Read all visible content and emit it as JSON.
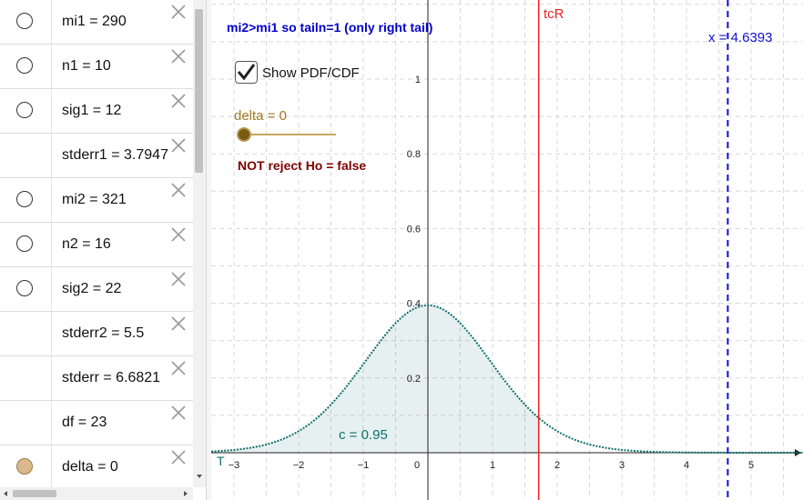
{
  "algebra": {
    "items": [
      {
        "label": "mi1 = 290",
        "bullet": "empty"
      },
      {
        "label": "n1 = 10",
        "bullet": "empty"
      },
      {
        "label": "sig1 = 12",
        "bullet": "empty"
      },
      {
        "label": "stderr1 = 3.7947",
        "bullet": "none"
      },
      {
        "label": "mi2 = 321",
        "bullet": "empty"
      },
      {
        "label": "n2 = 16",
        "bullet": "empty"
      },
      {
        "label": "sig2 = 22",
        "bullet": "empty"
      },
      {
        "label": "stderr2 = 5.5",
        "bullet": "none"
      },
      {
        "label": "stderr = 6.6821",
        "bullet": "none"
      },
      {
        "label": "df = 23",
        "bullet": "none"
      },
      {
        "label": "delta = 0",
        "bullet": "filled"
      }
    ],
    "delete_icon": "close-icon"
  },
  "graphics": {
    "tail_text": "mi2>mi1 so tailn=1 (only right tail)",
    "show_checkbox": {
      "label": "Show PDF/CDF",
      "checked": true
    },
    "slider": {
      "label": "delta = 0",
      "value": 0
    },
    "reject_text": "NOT reject Ho = false",
    "tcR_label": "tcR",
    "x_line_label": "x = 4.6393",
    "c_label": "c = 0.95",
    "T_label": "T",
    "colors": {
      "tail_text": "#0000cc",
      "reject_text": "#800000",
      "tcR": "#ee2222",
      "x_line": "#1111cc",
      "curve": "#117070",
      "slider": "#a07820"
    }
  },
  "chart_data": {
    "type": "area",
    "curve": "t-distribution pdf (df = 23), shaded from left to tcR",
    "x_ticks": [
      "−3",
      "−2",
      "−1",
      "0",
      "1",
      "2",
      "3",
      "4",
      "5"
    ],
    "y_ticks": [
      "0.2",
      "0.4",
      "0.6",
      "0.8",
      "1"
    ],
    "xlim": [
      -3.35,
      5.8
    ],
    "ylim": [
      0,
      1.08
    ],
    "tcR": 1.714,
    "x_line": 4.6393,
    "shaded_area": 0.95,
    "grid": true
  }
}
